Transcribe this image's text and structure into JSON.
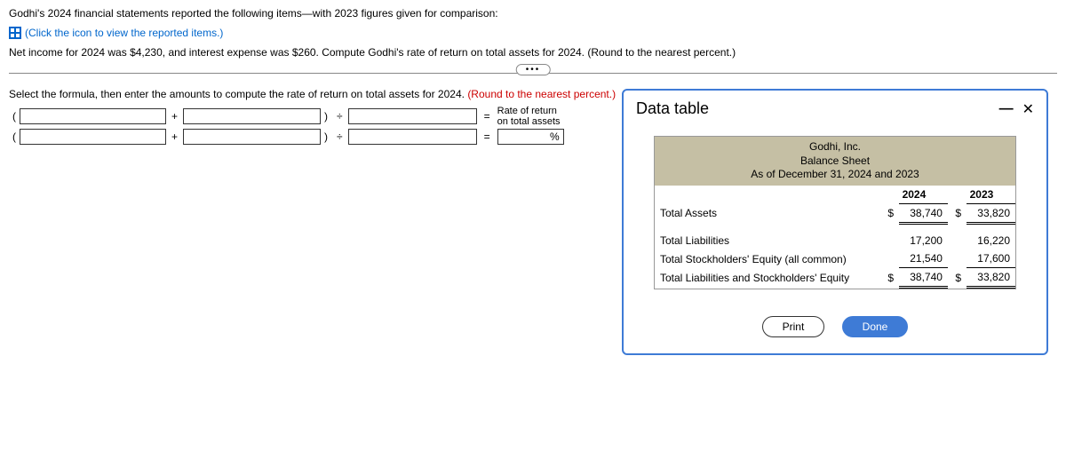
{
  "intro": {
    "line1": "Godhi's 2024 financial statements reported the following items—with 2023 figures given for comparison:",
    "link": "(Click the icon to view the reported items.)",
    "line2": "Net income for 2024 was $4,230, and interest expense was $260. Compute Godhi's rate of return on total assets for 2024. (Round to the nearest percent.)"
  },
  "prompt": {
    "text": "Select the formula, then enter the amounts to compute the rate of return on total assets for 2024. ",
    "hint": "(Round to the nearest percent.)"
  },
  "labels": {
    "rate_return_l1": "Rate of return",
    "rate_return_l2": "on total assets",
    "pct": "%"
  },
  "modal": {
    "title": "Data table",
    "company": "Godhi, Inc.",
    "sheet": "Balance Sheet",
    "asof": "As of December 31, 2024 and 2023",
    "col_2024": "2024",
    "col_2023": "2023",
    "rows": {
      "total_assets": "Total Assets",
      "total_liab": "Total Liabilities",
      "total_se": "Total Stockholders' Equity (all common)",
      "total_lse": "Total Liabilities and Stockholders' Equity"
    },
    "vals": {
      "ta_2024": "38,740",
      "ta_2023": "33,820",
      "tl_2024": "17,200",
      "tl_2023": "16,220",
      "se_2024": "21,540",
      "se_2023": "17,600",
      "lse_2024": "38,740",
      "lse_2023": "33,820"
    },
    "cur": "$",
    "print": "Print",
    "done": "Done"
  }
}
